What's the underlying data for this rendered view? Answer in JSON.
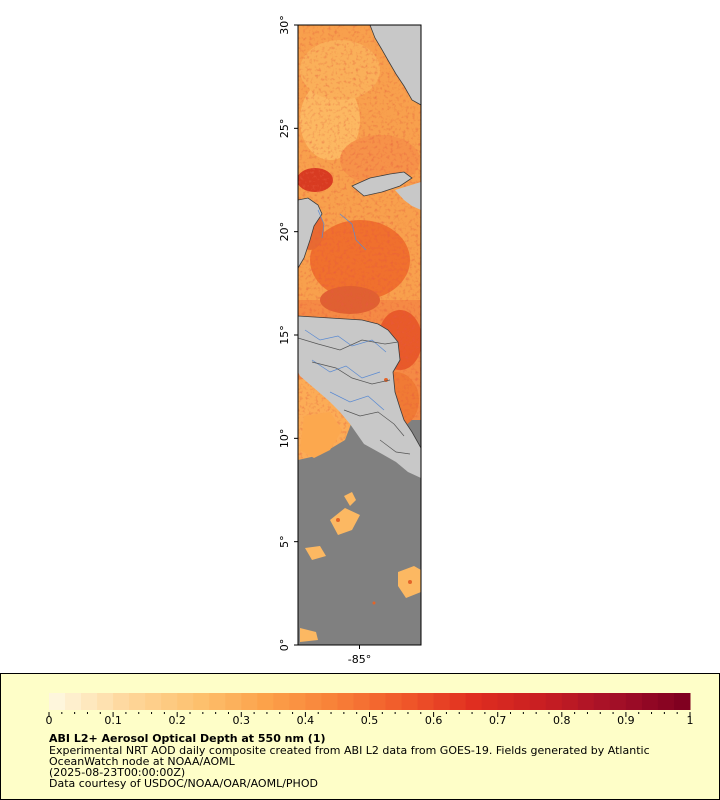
{
  "map": {
    "y_axis": {
      "ticks": [
        {
          "value": 0,
          "label": "0°"
        },
        {
          "value": 5,
          "label": "5°"
        },
        {
          "value": 10,
          "label": "10°"
        },
        {
          "value": 15,
          "label": "15°"
        },
        {
          "value": 20,
          "label": "20°"
        },
        {
          "value": 25,
          "label": "25°"
        },
        {
          "value": 30,
          "label": "30°"
        }
      ],
      "range": [
        0,
        30
      ]
    },
    "x_axis": {
      "ticks": [
        {
          "value": -85,
          "label": "-85°"
        }
      ],
      "range": [
        -88,
        -82
      ]
    },
    "colors": {
      "land": "#c8c8c8",
      "no_data_ocean": "#808080",
      "coastline": "#3c3c3c",
      "rivers": "#5a8ad2",
      "borders": "#555555"
    }
  },
  "legend": {
    "ticks": [
      "0",
      "0.1",
      "0.2",
      "0.3",
      "0.4",
      "0.5",
      "0.6",
      "0.7",
      "0.8",
      "0.9",
      "1"
    ],
    "range": [
      0,
      1
    ],
    "colors": [
      "#fef6dc",
      "#fed79c",
      "#fdc270",
      "#fca24a",
      "#f88038",
      "#f0582a",
      "#e02e20",
      "#c81e22",
      "#a51028",
      "#800020"
    ]
  },
  "caption": {
    "title": "ABI L2+ Aerosol Optical Depth at 550 nm (1)",
    "line1": "Experimental NRT AOD daily composite created from ABI L2 data from GOES-19. Fields generated by Atlantic",
    "line2": "OceanWatch node at NOAA/AOML",
    "line3": "(2025-08-23T00:00:00Z)",
    "line4": "Data courtesy of USDOC/NOAA/OAR/AOML/PHOD"
  }
}
